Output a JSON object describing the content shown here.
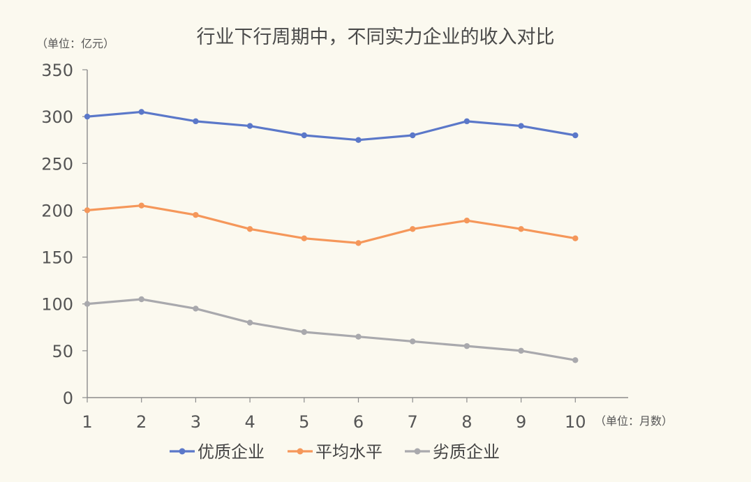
{
  "chart_data": {
    "type": "line",
    "title": "行业下行周期中，不同实力企业的收入对比",
    "ylabel": "（单位：亿元）",
    "xlabel": "（单位：月数）",
    "x": [
      1,
      2,
      3,
      4,
      5,
      6,
      7,
      8,
      9,
      10
    ],
    "ylim": [
      0,
      350
    ],
    "yticks": [
      0,
      50,
      100,
      150,
      200,
      250,
      300,
      350
    ],
    "grid": false,
    "legend_position": "bottom",
    "series": [
      {
        "name": "优质企业",
        "color": "#5b78c9",
        "values": [
          300,
          305,
          295,
          290,
          280,
          275,
          280,
          295,
          290,
          280
        ]
      },
      {
        "name": "平均水平",
        "color": "#f5975a",
        "values": [
          200,
          205,
          195,
          180,
          170,
          165,
          180,
          189,
          180,
          170
        ]
      },
      {
        "name": "劣质企业",
        "color": "#a9a9ad",
        "values": [
          100,
          105,
          95,
          80,
          70,
          65,
          60,
          55,
          50,
          40
        ]
      }
    ]
  }
}
